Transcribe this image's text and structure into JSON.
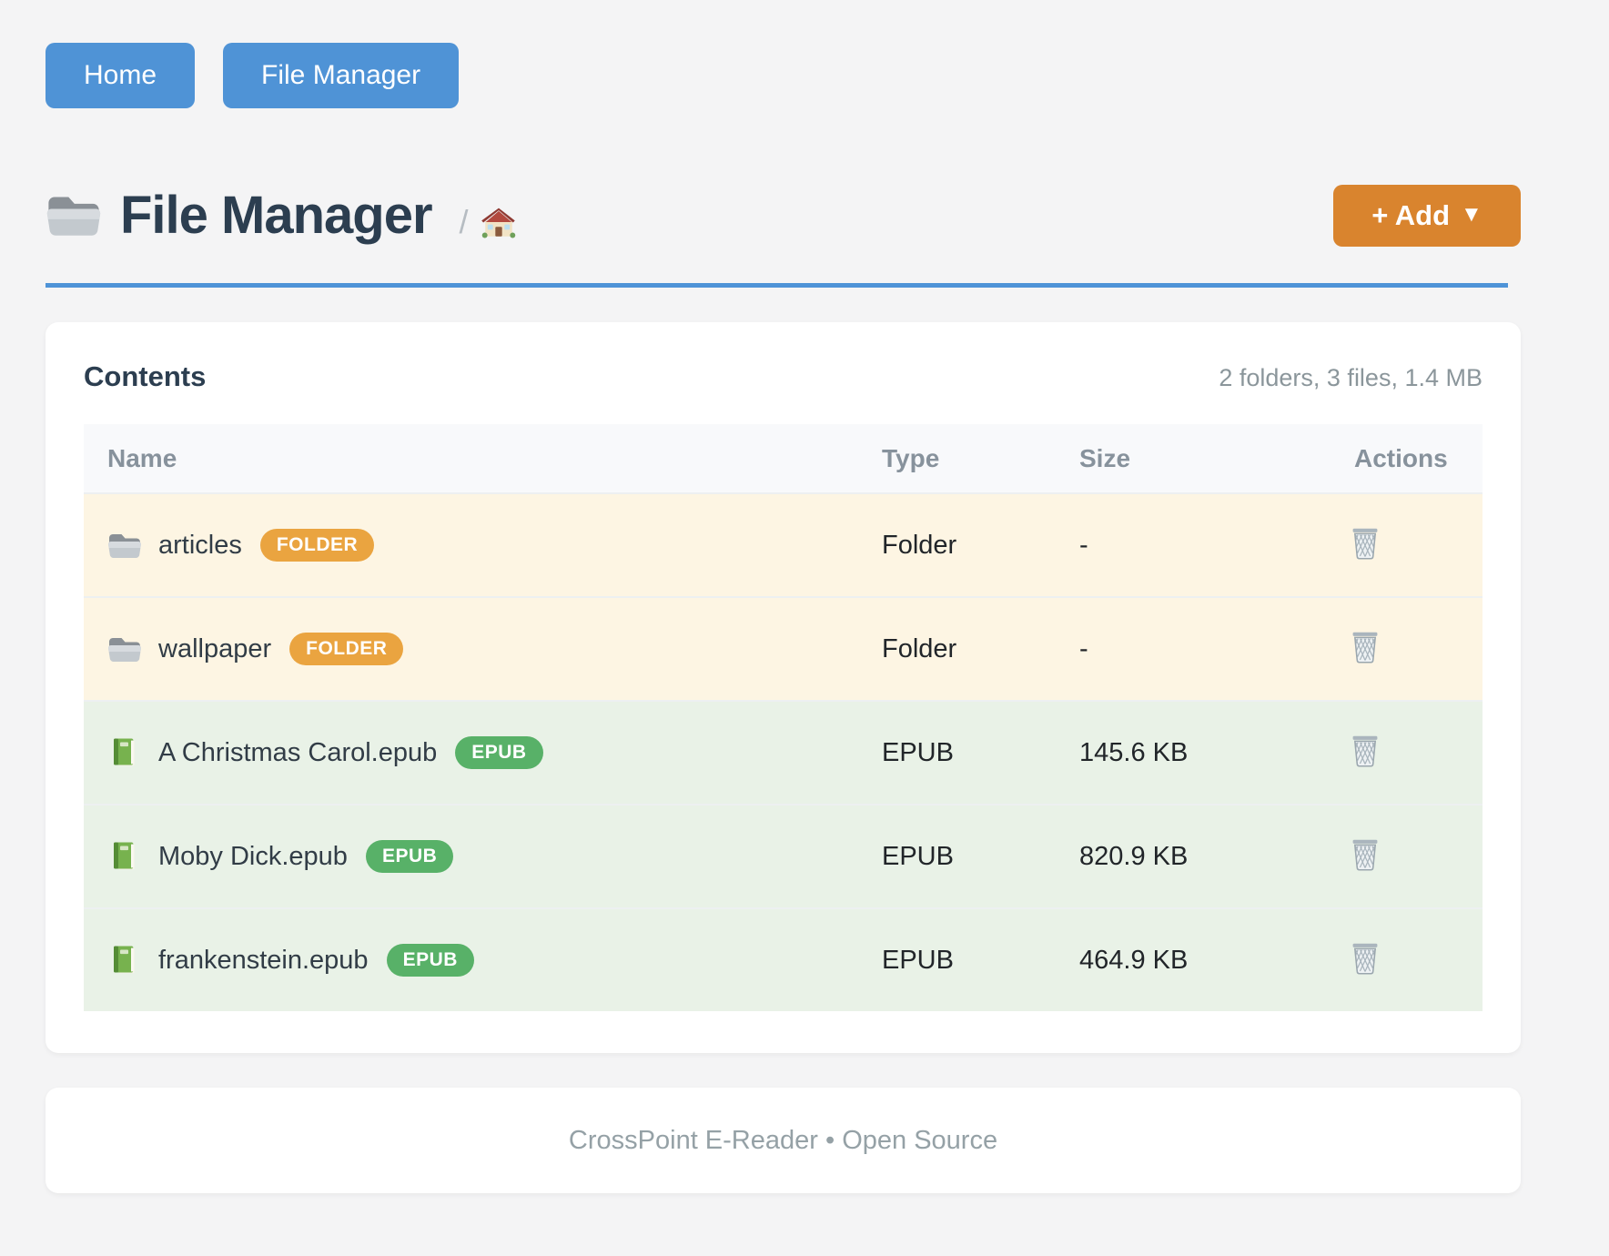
{
  "nav": {
    "buttons": [
      {
        "label": "Home"
      },
      {
        "label": "File Manager"
      }
    ]
  },
  "header": {
    "title": "File Manager",
    "title_icon": "folder-icon",
    "breadcrumb_separator": "/",
    "breadcrumb_home_icon": "house-icon",
    "add_button": {
      "label": "+ Add",
      "caret": "▼"
    }
  },
  "contents": {
    "title": "Contents",
    "summary": "2 folders, 3 files, 1.4 MB"
  },
  "table": {
    "headers": [
      "Name",
      "Type",
      "Size",
      "Actions"
    ],
    "action_icon": "trash-icon",
    "rows": [
      {
        "name": "articles",
        "badge": "FOLDER",
        "type": "Folder",
        "size": "-",
        "icon": "folder-icon",
        "kind": "folder"
      },
      {
        "name": "wallpaper",
        "badge": "FOLDER",
        "type": "Folder",
        "size": "-",
        "icon": "folder-icon",
        "kind": "folder"
      },
      {
        "name": "A Christmas Carol.epub",
        "badge": "EPUB",
        "type": "EPUB",
        "size": "145.6 KB",
        "icon": "book-icon",
        "kind": "file"
      },
      {
        "name": "Moby Dick.epub",
        "badge": "EPUB",
        "type": "EPUB",
        "size": "820.9 KB",
        "icon": "book-icon",
        "kind": "file"
      },
      {
        "name": "frankenstein.epub",
        "badge": "EPUB",
        "type": "EPUB",
        "size": "464.9 KB",
        "icon": "book-icon",
        "kind": "file"
      }
    ]
  },
  "footer": {
    "text": "CrossPoint E-Reader • Open Source"
  },
  "colors": {
    "page_background": "#f4f4f5",
    "primary_blue": "#4f93d6",
    "rule_blue": "#4e93d7",
    "accent_orange": "#d9842e",
    "badge_orange": "#eaa440",
    "badge_green": "#58b168",
    "folder_row_bg": "#fdf5e3",
    "file_row_bg": "#e9f2e7",
    "heading_text": "#2c3e50",
    "muted_text": "#8b969b"
  }
}
